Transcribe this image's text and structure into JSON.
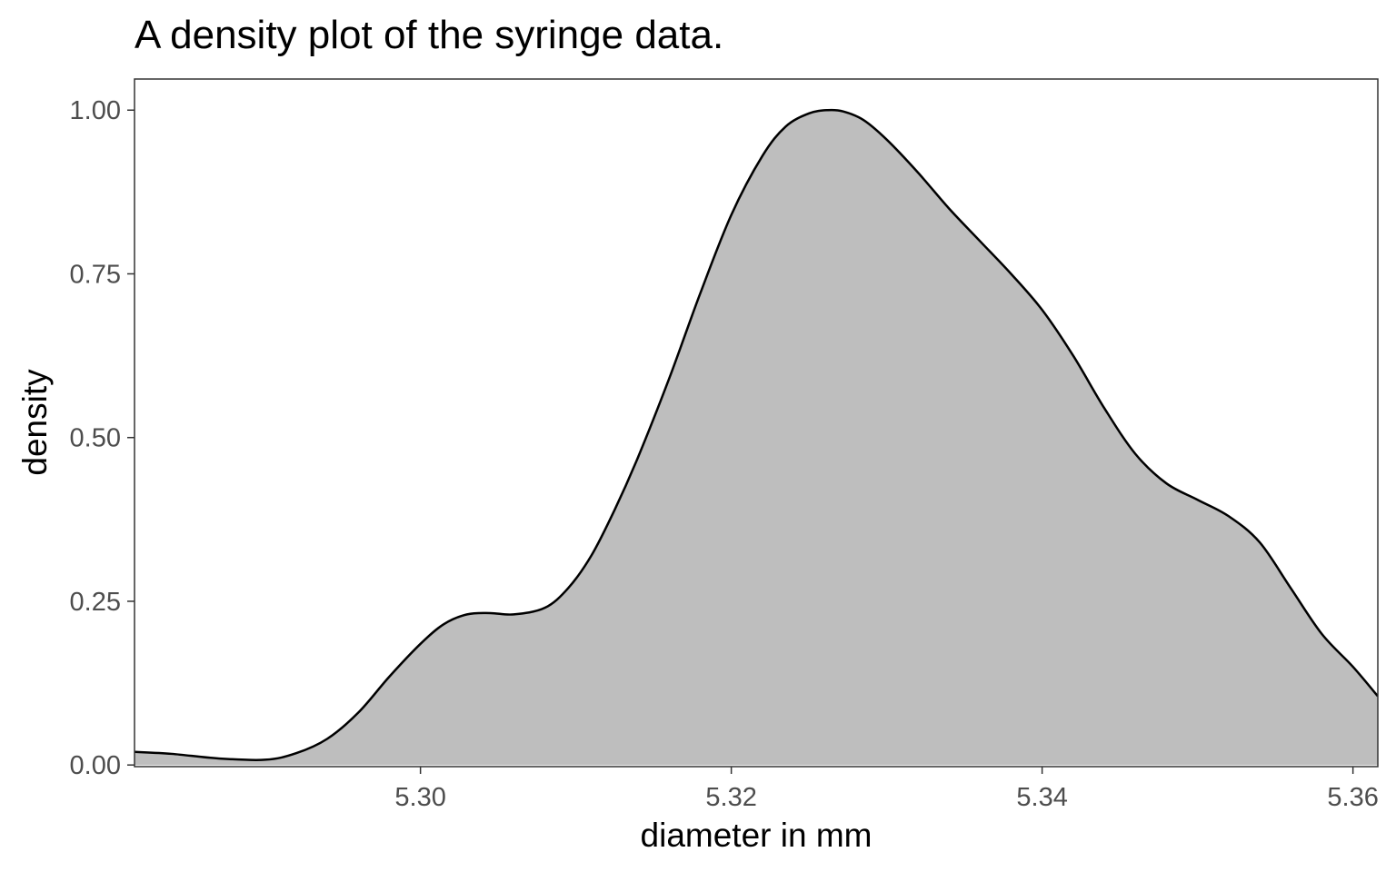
{
  "chart_data": {
    "type": "area",
    "title": "A density plot of the syringe data.",
    "xlabel": "diameter in mm",
    "ylabel": "density",
    "xlim": [
      5.2816,
      5.3616
    ],
    "ylim": [
      -0.0025,
      1.0475
    ],
    "x_ticks": [
      5.3,
      5.32,
      5.34,
      5.36
    ],
    "x_tick_labels": [
      "5.30",
      "5.32",
      "5.34",
      "5.36"
    ],
    "y_ticks": [
      0.0,
      0.25,
      0.5,
      0.75,
      1.0
    ],
    "y_tick_labels": [
      "0.00",
      "0.25",
      "0.50",
      "0.75",
      "1.00"
    ],
    "grid": false,
    "fill_color": "#bebebe",
    "line_color": "#000000",
    "x": [
      5.2816,
      5.284,
      5.287,
      5.29,
      5.292,
      5.294,
      5.296,
      5.298,
      5.3,
      5.3015,
      5.303,
      5.3045,
      5.306,
      5.308,
      5.3095,
      5.311,
      5.3125,
      5.314,
      5.316,
      5.318,
      5.32,
      5.322,
      5.3235,
      5.325,
      5.3262,
      5.3272,
      5.3285,
      5.33,
      5.332,
      5.334,
      5.336,
      5.338,
      5.34,
      5.342,
      5.344,
      5.346,
      5.348,
      5.35,
      5.352,
      5.354,
      5.356,
      5.358,
      5.36,
      5.3616
    ],
    "y": [
      0.02,
      0.017,
      0.01,
      0.008,
      0.018,
      0.04,
      0.08,
      0.135,
      0.185,
      0.215,
      0.23,
      0.232,
      0.23,
      0.24,
      0.27,
      0.32,
      0.39,
      0.47,
      0.59,
      0.72,
      0.84,
      0.93,
      0.975,
      0.995,
      1.0,
      0.998,
      0.985,
      0.955,
      0.905,
      0.85,
      0.8,
      0.75,
      0.695,
      0.625,
      0.545,
      0.475,
      0.43,
      0.405,
      0.38,
      0.34,
      0.27,
      0.2,
      0.15,
      0.105
    ]
  }
}
